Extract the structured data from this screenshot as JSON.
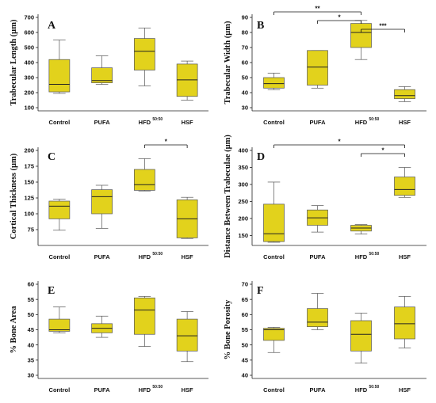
{
  "colors": {
    "box_fill": "#e2d21c",
    "box_stroke": "#555555",
    "axis": "#222222"
  },
  "chart_data": [
    {
      "panel": "A",
      "type": "boxplot",
      "ylabel": "Trabecular Length (µm)",
      "categories": [
        "Control",
        "PUFA",
        "HFD",
        "HSF"
      ],
      "category_superscripts": [
        "",
        "",
        "50:50",
        ""
      ],
      "ylim": [
        100,
        700
      ],
      "yticks": [
        100,
        200,
        300,
        400,
        500,
        600,
        700
      ],
      "boxes": [
        {
          "min": 195,
          "q1": 205,
          "median": 255,
          "q3": 420,
          "max": 550
        },
        {
          "min": 255,
          "q1": 265,
          "median": 280,
          "q3": 365,
          "max": 445
        },
        {
          "min": 245,
          "q1": 350,
          "median": 475,
          "q3": 560,
          "max": 630
        },
        {
          "min": 150,
          "q1": 175,
          "median": 285,
          "q3": 390,
          "max": 410
        }
      ],
      "significance": []
    },
    {
      "panel": "B",
      "type": "boxplot",
      "ylabel": "Trabecular Width (µm)",
      "categories": [
        "Control",
        "PUFA",
        "HFD",
        "HSF"
      ],
      "category_superscripts": [
        "",
        "",
        "50:50",
        ""
      ],
      "ylim": [
        30,
        90
      ],
      "yticks": [
        30,
        40,
        50,
        60,
        70,
        80,
        90
      ],
      "boxes": [
        {
          "min": 42,
          "q1": 43,
          "median": 46,
          "q3": 50,
          "max": 53
        },
        {
          "min": 43,
          "q1": 45,
          "median": 57,
          "q3": 68,
          "max": 68
        },
        {
          "min": 62,
          "q1": 70,
          "median": 80,
          "q3": 86,
          "max": 88
        },
        {
          "min": 34,
          "q1": 36,
          "median": 38,
          "q3": 42,
          "max": 44
        }
      ],
      "significance": [
        {
          "from": 0,
          "to": 2,
          "label": "**"
        },
        {
          "from": 1,
          "to": 2,
          "label": "*"
        },
        {
          "from": 2,
          "to": 3,
          "label": "***"
        }
      ]
    },
    {
      "panel": "C",
      "type": "boxplot",
      "ylabel": "Cortical Thickness (µm)",
      "categories": [
        "Control",
        "PUFA",
        "HFD",
        "HSF"
      ],
      "category_superscripts": [
        "",
        "",
        "50:50",
        ""
      ],
      "ylim": [
        55,
        200
      ],
      "yticks": [
        75,
        100,
        125,
        150,
        175,
        200
      ],
      "boxes": [
        {
          "min": 74,
          "q1": 92,
          "median": 112,
          "q3": 120,
          "max": 123
        },
        {
          "min": 77,
          "q1": 100,
          "median": 127,
          "q3": 138,
          "max": 145
        },
        {
          "min": 136,
          "q1": 137,
          "median": 146,
          "q3": 170,
          "max": 187
        },
        {
          "min": 61,
          "q1": 62,
          "median": 92,
          "q3": 122,
          "max": 126
        }
      ],
      "significance": [
        {
          "from": 2,
          "to": 3,
          "label": "*"
        }
      ]
    },
    {
      "panel": "D",
      "type": "boxplot",
      "ylabel": "Distance Between Trabeculae (µm)",
      "categories": [
        "Control",
        "PUFA",
        "HFD",
        "HSF"
      ],
      "category_superscripts": [
        "",
        "",
        "50:50",
        ""
      ],
      "ylim": [
        130,
        400
      ],
      "yticks": [
        150,
        200,
        250,
        300,
        350,
        400
      ],
      "boxes": [
        {
          "min": 130,
          "q1": 132,
          "median": 155,
          "q3": 242,
          "max": 307
        },
        {
          "min": 160,
          "q1": 180,
          "median": 202,
          "q3": 225,
          "max": 238
        },
        {
          "min": 154,
          "q1": 163,
          "median": 172,
          "q3": 180,
          "max": 182
        },
        {
          "min": 262,
          "q1": 268,
          "median": 285,
          "q3": 322,
          "max": 350
        }
      ],
      "significance": [
        {
          "from": 0,
          "to": 3,
          "label": "*"
        },
        {
          "from": 2,
          "to": 3,
          "label": "*"
        }
      ]
    },
    {
      "panel": "E",
      "type": "boxplot",
      "ylabel": "% Bone Area",
      "categories": [
        "Control",
        "PUFA",
        "HFD",
        "HSF"
      ],
      "category_superscripts": [
        "",
        "",
        "50:50",
        ""
      ],
      "ylim": [
        30,
        60
      ],
      "yticks": [
        30,
        35,
        40,
        45,
        50,
        55,
        60
      ],
      "boxes": [
        {
          "min": 44,
          "q1": 44.5,
          "median": 45,
          "q3": 48.5,
          "max": 52.5
        },
        {
          "min": 42.5,
          "q1": 44,
          "median": 45.5,
          "q3": 47,
          "max": 49.5
        },
        {
          "min": 39.5,
          "q1": 43.5,
          "median": 51.5,
          "q3": 55.5,
          "max": 56
        },
        {
          "min": 34.5,
          "q1": 38,
          "median": 43,
          "q3": 48.5,
          "max": 51
        }
      ],
      "significance": []
    },
    {
      "panel": "F",
      "type": "boxplot",
      "ylabel": "% Bone Porosity",
      "categories": [
        "Control",
        "PUFA",
        "HFD",
        "HSF"
      ],
      "category_superscripts": [
        "",
        "",
        "50:50",
        ""
      ],
      "ylim": [
        40,
        70
      ],
      "yticks": [
        40,
        45,
        50,
        55,
        60,
        65,
        70
      ],
      "boxes": [
        {
          "min": 47.5,
          "q1": 51.5,
          "median": 55,
          "q3": 55.5,
          "max": 55.8
        },
        {
          "min": 55,
          "q1": 56,
          "median": 57.5,
          "q3": 62,
          "max": 67
        },
        {
          "min": 44,
          "q1": 48,
          "median": 53.5,
          "q3": 58,
          "max": 60.5
        },
        {
          "min": 49,
          "q1": 52,
          "median": 57,
          "q3": 62.5,
          "max": 66
        }
      ],
      "significance": []
    }
  ]
}
